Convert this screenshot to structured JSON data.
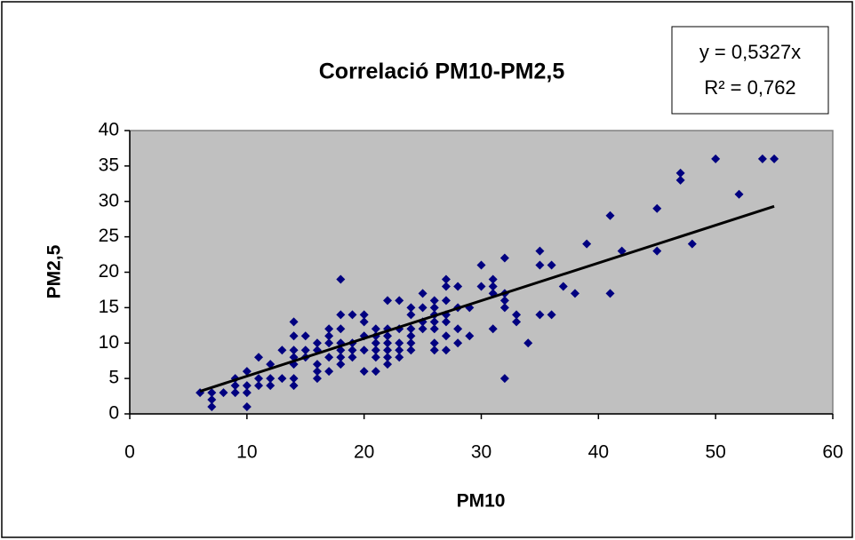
{
  "chart_data": {
    "type": "scatter",
    "title": "Correlació PM10-PM2,5",
    "x_label": "PM10",
    "y_label": "PM2,5",
    "annotations": [
      "y = 0,5327x",
      "R² = 0,762"
    ],
    "xlim": [
      0,
      60
    ],
    "xticks": [
      0,
      10,
      20,
      30,
      40,
      50,
      60
    ],
    "ylim": [
      0,
      40
    ],
    "yticks": [
      0,
      5,
      10,
      15,
      20,
      25,
      30,
      35,
      40
    ],
    "color": "#000080",
    "plot_background": "#c0c0c0",
    "trendline": {
      "slope": 0.5327,
      "xrange": [
        6,
        55
      ],
      "color": "#000000"
    },
    "x": [
      6,
      7,
      7,
      7,
      8,
      9,
      9,
      9,
      10,
      10,
      10,
      10,
      11,
      11,
      11,
      12,
      12,
      12,
      13,
      13,
      14,
      14,
      14,
      14,
      14,
      14,
      14,
      15,
      15,
      15,
      16,
      16,
      16,
      16,
      16,
      17,
      17,
      17,
      17,
      17,
      18,
      18,
      18,
      18,
      18,
      18,
      18,
      19,
      19,
      19,
      19,
      20,
      20,
      20,
      20,
      20,
      21,
      21,
      21,
      21,
      21,
      21,
      22,
      22,
      22,
      22,
      22,
      22,
      22,
      23,
      23,
      23,
      23,
      23,
      24,
      24,
      24,
      24,
      24,
      24,
      25,
      25,
      25,
      25,
      26,
      26,
      26,
      26,
      26,
      26,
      26,
      27,
      27,
      27,
      27,
      27,
      27,
      27,
      28,
      28,
      28,
      28,
      29,
      29,
      30,
      30,
      31,
      31,
      31,
      31,
      32,
      32,
      32,
      32,
      32,
      33,
      33,
      34,
      35,
      35,
      35,
      36,
      36,
      37,
      38,
      39,
      41,
      41,
      42,
      45,
      45,
      47,
      47,
      48,
      50,
      52,
      54,
      55
    ],
    "values": [
      3,
      3,
      2,
      1,
      3,
      5,
      4,
      3,
      6,
      4,
      3,
      1,
      8,
      5,
      4,
      7,
      5,
      4,
      9,
      5,
      13,
      11,
      9,
      8,
      7,
      5,
      4,
      11,
      9,
      8,
      10,
      9,
      7,
      6,
      5,
      12,
      11,
      10,
      8,
      6,
      19,
      14,
      12,
      10,
      9,
      8,
      7,
      14,
      10,
      9,
      8,
      14,
      13,
      11,
      9,
      6,
      12,
      11,
      10,
      9,
      8,
      6,
      16,
      12,
      11,
      10,
      9,
      8,
      7,
      16,
      12,
      10,
      9,
      8,
      15,
      14,
      12,
      11,
      10,
      9,
      17,
      15,
      13,
      12,
      16,
      15,
      14,
      13,
      12,
      10,
      9,
      19,
      18,
      16,
      14,
      13,
      11,
      9,
      18,
      15,
      12,
      10,
      15,
      11,
      21,
      18,
      19,
      18,
      17,
      12,
      22,
      17,
      16,
      15,
      5,
      14,
      13,
      10,
      23,
      21,
      14,
      21,
      14,
      18,
      17,
      24,
      28,
      17,
      23,
      29,
      23,
      34,
      33,
      24,
      36,
      31,
      36,
      36
    ]
  }
}
